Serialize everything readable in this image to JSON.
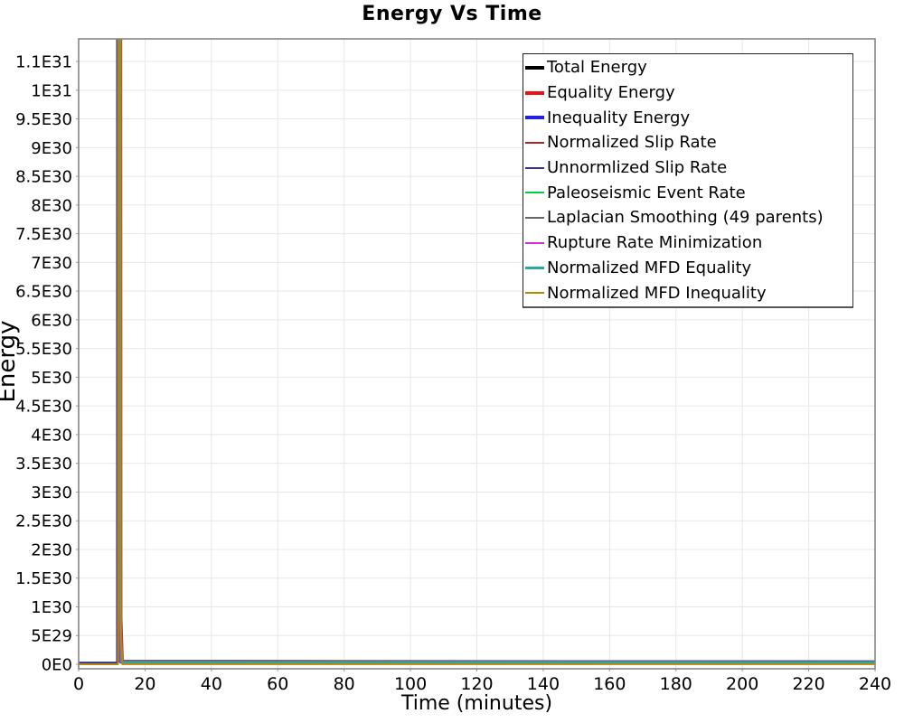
{
  "chart_data": {
    "type": "line",
    "title": "Energy Vs Time",
    "xlabel": "Time (minutes)",
    "ylabel": "Energy",
    "xlim": [
      0,
      240
    ],
    "ylim": [
      0,
      1.09e+31
    ],
    "x_ticks": [
      0,
      20,
      40,
      60,
      80,
      100,
      120,
      140,
      160,
      180,
      200,
      220,
      240
    ],
    "y_tick_step": 5e+29,
    "y_tick_labels": [
      "0E0",
      "5E29",
      "1E30",
      "1.5E30",
      "2E30",
      "2.5E30",
      "3E30",
      "3.5E30",
      "4E30",
      "4.5E30",
      "5E30",
      "5.5E30",
      "6E30",
      "6.5E30",
      "7E30",
      "7.5E30",
      "8E30",
      "8.5E30",
      "9E30",
      "9.5E30",
      "1E31",
      "1.1E31"
    ],
    "grid": true,
    "legend_position": "inside-top-right",
    "layout": {
      "background_color": "#ffffff",
      "grid_color": "#e7e7e7",
      "border_color": "#878787",
      "tick_color": "#999999",
      "text_color": "#000000"
    },
    "series": [
      {
        "name": "Total Energy",
        "color": "#000000",
        "width": 3.5,
        "points": [
          [
            11.45,
            1.5e+32
          ],
          [
            12.2,
            1.5e+30
          ],
          [
            12.5,
            6e+28
          ],
          [
            12.8,
            4e+28
          ],
          [
            240,
            4e+28
          ]
        ]
      },
      {
        "name": "Equality Energy",
        "color": "#ee1111",
        "width": 3.5,
        "points": [
          [
            11.5,
            1.4e+32
          ],
          [
            12.3,
            1.2e+30
          ],
          [
            12.6,
            5e+28
          ],
          [
            240,
            3.8e+28
          ]
        ]
      },
      {
        "name": "Inequality Energy",
        "color": "#2222dd",
        "width": 3.5,
        "points": [
          [
            11.55,
            1.3e+32
          ],
          [
            12.35,
            1e+30
          ],
          [
            12.65,
            4.5e+28
          ],
          [
            240,
            3.6e+28
          ]
        ]
      },
      {
        "name": "Normalized Slip Rate",
        "color": "#b22222",
        "width": 2,
        "points": [
          [
            12.05,
            1.5e+32
          ],
          [
            12.9,
            8e+29
          ],
          [
            13.35,
            3e+28
          ],
          [
            240,
            3e+28
          ]
        ]
      },
      {
        "name": "Unnormlized Slip Rate",
        "color": "#333399",
        "width": 2,
        "points": [
          [
            0,
            3e+28
          ],
          [
            11.55,
            3e+28
          ],
          [
            11.75,
            1.5e+32
          ],
          [
            12.45,
            9e+29
          ],
          [
            12.8,
            3.5e+28
          ],
          [
            240,
            3.2e+28
          ]
        ]
      },
      {
        "name": "Paleoseismic Event Rate",
        "color": "#00cc44",
        "width": 2,
        "points": [
          [
            11.4,
            1.3e+32
          ],
          [
            12.15,
            1.1e+30
          ],
          [
            12.55,
            5e+28
          ],
          [
            240,
            3.4e+28
          ]
        ]
      },
      {
        "name": "Laplacian Smoothing (49 parents)",
        "color": "#666666",
        "width": 2,
        "points": [
          [
            11.35,
            1.5e+32
          ],
          [
            12.1,
            1.3e+30
          ],
          [
            12.45,
            6e+28
          ],
          [
            240,
            4.2e+28
          ]
        ]
      },
      {
        "name": "Rupture Rate Minimization",
        "color": "#cc33cc",
        "width": 2,
        "points": [
          [
            11.6,
            1.2e+32
          ],
          [
            12.4,
            9e+29
          ],
          [
            12.7,
            4e+28
          ],
          [
            240,
            3.1e+28
          ]
        ]
      },
      {
        "name": "Normalized MFD Equality",
        "color": "#2aa8a8",
        "width": 2.5,
        "points": [
          [
            11.8,
            1.5e+32
          ],
          [
            12.55,
            1e+30
          ],
          [
            13.0,
            3.5e+28
          ],
          [
            240,
            3.3e+28
          ]
        ]
      },
      {
        "name": "Normalized MFD Inequality",
        "color": "#b8860b",
        "width": 2,
        "points": [
          [
            0,
            0
          ],
          [
            11.85,
            0
          ],
          [
            11.95,
            1.2e+32
          ],
          [
            12.75,
            6e+29
          ],
          [
            13.2,
            1e+27
          ],
          [
            240,
            1e+27
          ]
        ]
      }
    ]
  }
}
